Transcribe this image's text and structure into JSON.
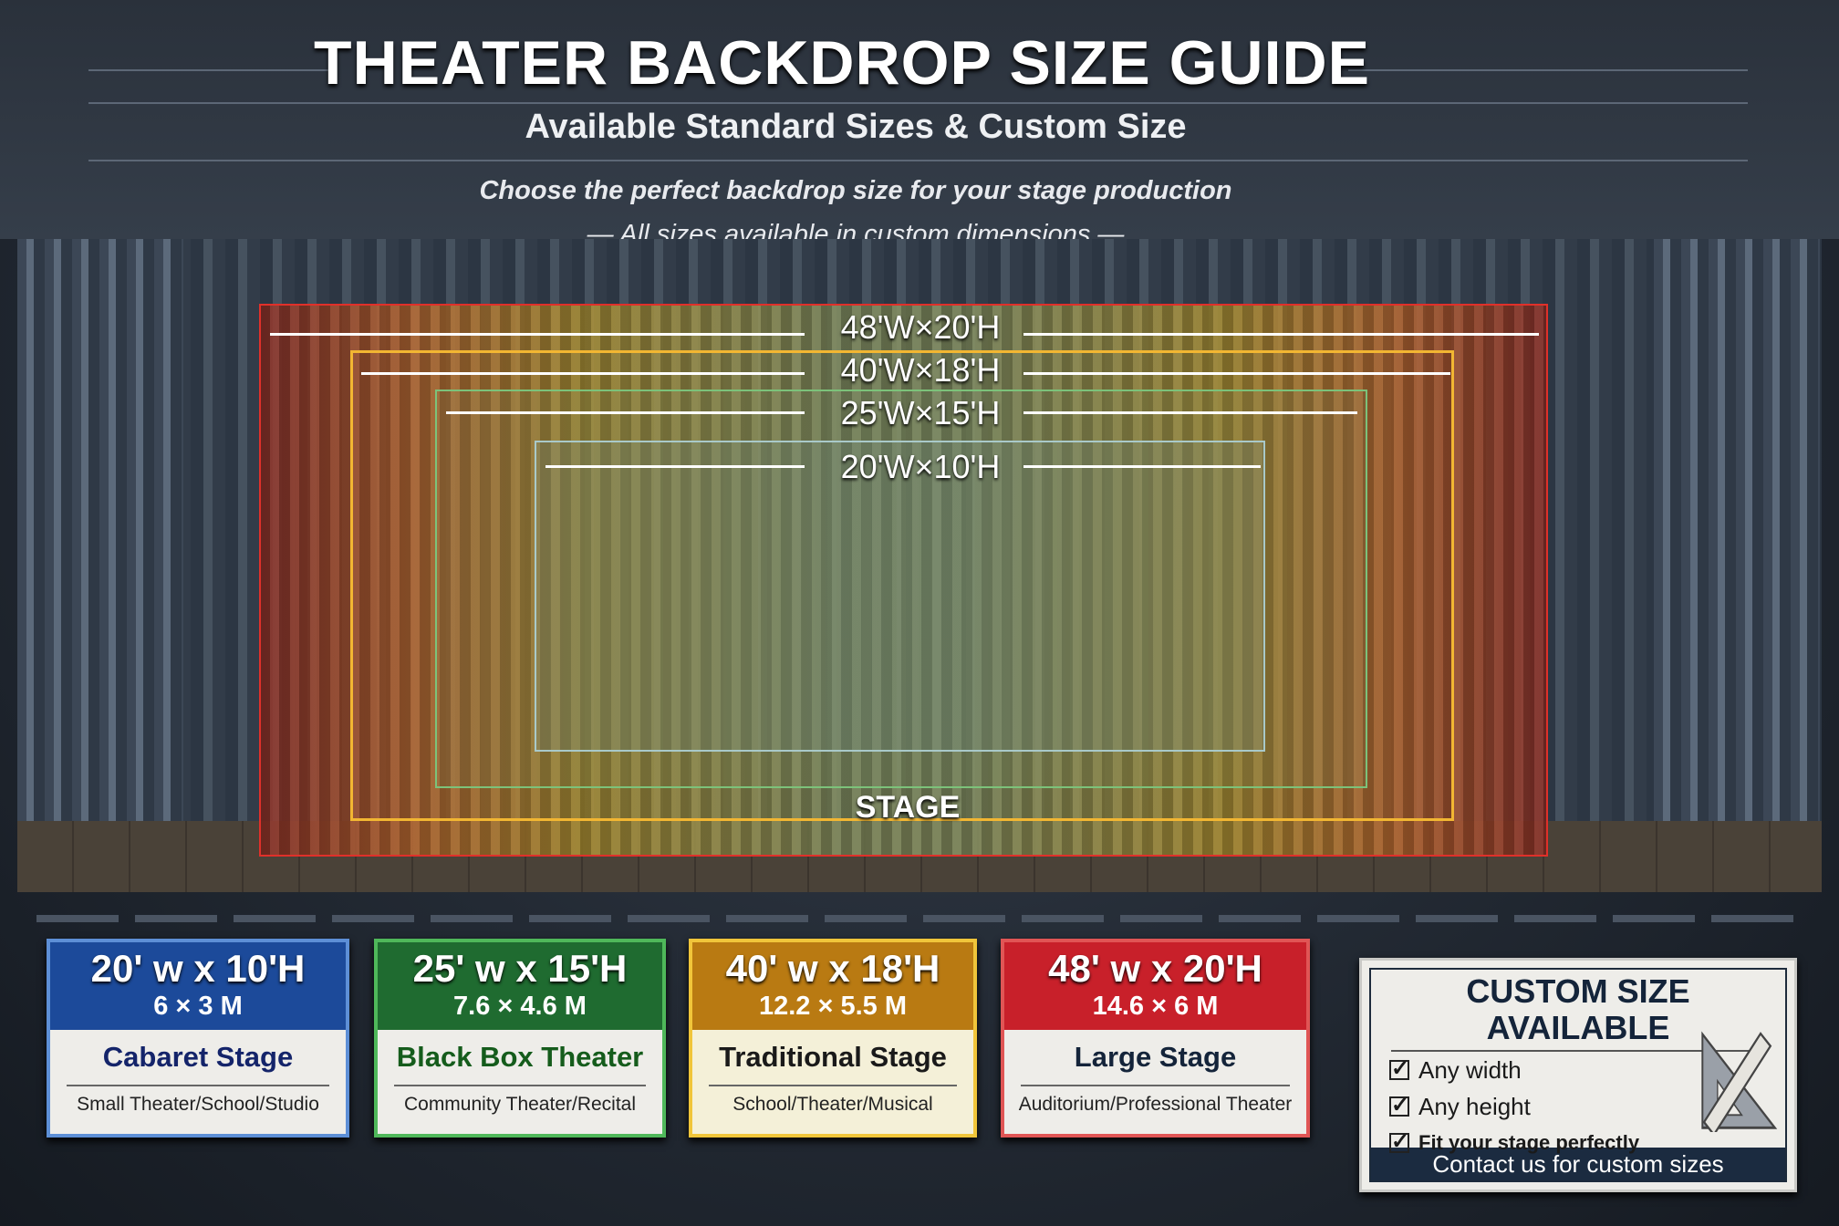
{
  "header": {
    "title": "THEATER BACKDROP SIZE GUIDE",
    "subtitle": "Available Standard Sizes & Custom Size",
    "tagline_1": "Choose the perfect backdrop size for your stage production",
    "tagline_2": "— All sizes available in custom dimensions —"
  },
  "diagram": {
    "labels": [
      "48'W×20'H",
      "40'W×18'H",
      "25'W×15'H",
      "20'W×10'H"
    ],
    "stage_label": "STAGE",
    "colors": [
      "#e0302a",
      "#f2b632",
      "#7cc27a",
      "#a9c9c9"
    ]
  },
  "cards": [
    {
      "size": "20' w x 10'H",
      "metric": "6 × 3 M",
      "name": "Cabaret Stage",
      "use": "Small Theater/School/Studio",
      "color": "#1c4a9a",
      "name_color": "#14246a"
    },
    {
      "size": "25' w x 15'H",
      "metric": "7.6 × 4.6 M",
      "name": "Black Box Theater",
      "use": "Community Theater/Recital",
      "color": "#1f6b30",
      "name_color": "#155c1c"
    },
    {
      "size": "40' w x 18'H",
      "metric": "12.2 × 5.5 M",
      "name": "Traditional Stage",
      "use": "School/Theater/Musical",
      "color": "#b97a12",
      "name_color": "#1a1a1a"
    },
    {
      "size": "48' w x 20'H",
      "metric": "14.6 × 6 M",
      "name": "Large Stage",
      "use": "Auditorium/Professional Theater",
      "color": "#c8202a",
      "name_color": "#14243a"
    }
  ],
  "custom": {
    "title": "CUSTOM SIZE AVAILABLE",
    "features": [
      "Any width",
      "Any height",
      "Fit your stage perfectly"
    ],
    "contact": "Contact us for custom sizes",
    "icon": "ruler-triangle-icon"
  }
}
